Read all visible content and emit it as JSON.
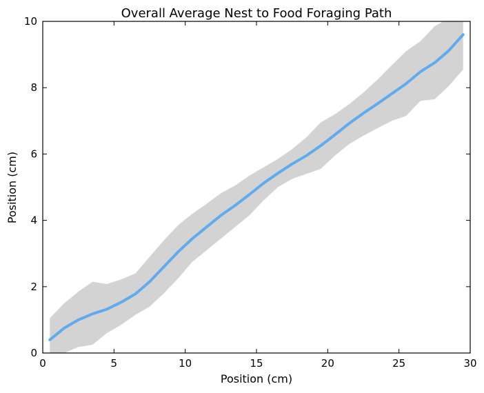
{
  "chart_data": {
    "type": "line",
    "title": "Overall Average Nest to Food Foraging Path",
    "xlabel": "Position (cm)",
    "ylabel": "Position (cm)",
    "xlim": [
      0,
      30
    ],
    "ylim": [
      0,
      10
    ],
    "xticks": [
      0,
      5,
      10,
      15,
      20,
      25,
      30
    ],
    "yticks": [
      0,
      2,
      4,
      6,
      8,
      10
    ],
    "grid": false,
    "colors": {
      "line": "#5fabed",
      "band": "#d3d3d3"
    },
    "series": [
      {
        "x": [
          0.5,
          1.5,
          2.5,
          3.5,
          4.5,
          5.5,
          6.5,
          7.5,
          8.5,
          9.5,
          10.5,
          11.5,
          12.5,
          13.5,
          14.5,
          15.5,
          16.5,
          17.5,
          18.5,
          19.5,
          20.5,
          21.5,
          22.5,
          23.5,
          24.5,
          25.5,
          26.5,
          27.5,
          28.5,
          29.5
        ],
        "y": [
          0.4,
          0.75,
          1.0,
          1.18,
          1.32,
          1.53,
          1.78,
          2.15,
          2.6,
          3.05,
          3.45,
          3.8,
          4.15,
          4.45,
          4.78,
          5.12,
          5.42,
          5.7,
          5.95,
          6.25,
          6.58,
          6.92,
          7.23,
          7.52,
          7.82,
          8.12,
          8.48,
          8.75,
          9.12,
          9.6
        ],
        "lower": [
          -0.15,
          0.0,
          0.18,
          0.25,
          0.6,
          0.85,
          1.15,
          1.4,
          1.8,
          2.25,
          2.75,
          3.1,
          3.45,
          3.8,
          4.15,
          4.6,
          5.0,
          5.25,
          5.4,
          5.55,
          5.95,
          6.3,
          6.55,
          6.78,
          7.0,
          7.15,
          7.6,
          7.65,
          8.05,
          8.55
        ],
        "upper": [
          1.05,
          1.5,
          1.85,
          2.15,
          2.08,
          2.22,
          2.4,
          2.9,
          3.4,
          3.85,
          4.2,
          4.5,
          4.82,
          5.05,
          5.35,
          5.6,
          5.85,
          6.15,
          6.5,
          6.95,
          7.2,
          7.5,
          7.85,
          8.25,
          8.68,
          9.1,
          9.4,
          9.85,
          10.1,
          10.1
        ]
      }
    ]
  }
}
